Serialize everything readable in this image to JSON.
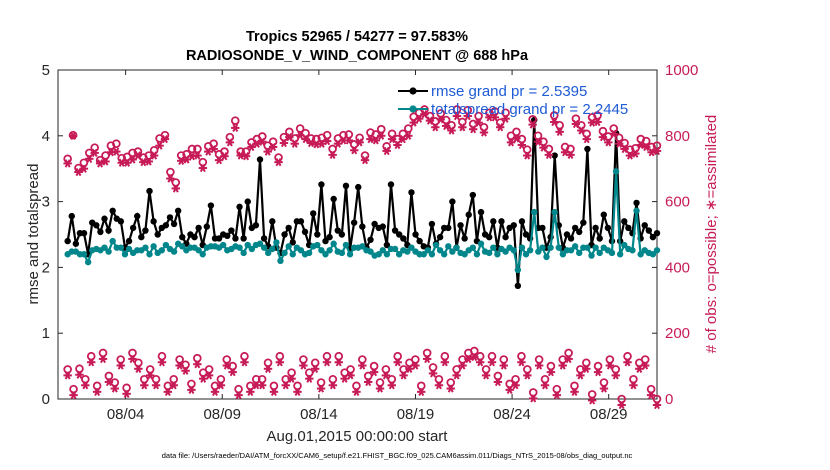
{
  "chart_data": {
    "type": "line",
    "title_line1": "Tropics 52965 / 54277 = 97.583%",
    "title_line2": "RADIOSONDE_V_WIND_COMPONENT @ 688 hPa",
    "ylabel_left": "rmse and totalspread",
    "ylabel_right": "# of obs: o=possible; ∗=assimilated",
    "xlabel": "Aug.01,2015 00:00:00 start",
    "footnote": "data file: /Users/raeder/DAI/ATM_forcXX/CAM6_setup/f.e21.FHIST_BGC.f09_025.CAM6assim.011/Diags_NTrS_2015-08/obs_diag_output.nc",
    "xlim": [
      0.5,
      31.5
    ],
    "ylim_left": [
      0,
      5
    ],
    "ylim_right": [
      0,
      1000
    ],
    "yticks_left": [
      "0",
      "1",
      "2",
      "3",
      "4",
      "5"
    ],
    "yticks_right": [
      "0",
      "200",
      "400",
      "600",
      "800",
      "1000"
    ],
    "xticks": [
      {
        "day": 4,
        "label": "08/04"
      },
      {
        "day": 9,
        "label": "08/09"
      },
      {
        "day": 14,
        "label": "08/14"
      },
      {
        "day": 19,
        "label": "08/19"
      },
      {
        "day": 24,
        "label": "08/24"
      },
      {
        "day": 29,
        "label": "08/29"
      }
    ],
    "legend": [
      {
        "label": "rmse grand pr = 2.5395",
        "color": "#000000"
      },
      {
        "label": "totalspread grand pr = 2.2445",
        "color": "#00868b"
      }
    ],
    "colors": {
      "rmse": "#000000",
      "spread": "#00868b",
      "obs": "#c71b58",
      "legend_text": "#1f5bd6"
    },
    "series": [
      {
        "name": "rmse",
        "values": [
          2.4,
          2.78,
          2.36,
          2.52,
          2.52,
          2.2,
          2.68,
          2.64,
          2.54,
          2.74,
          2.56,
          2.86,
          2.74,
          2.7,
          2.3,
          2.4,
          2.6,
          2.78,
          2.46,
          2.56,
          3.16,
          2.7,
          2.5,
          2.6,
          2.64,
          2.76,
          2.66,
          2.86,
          2.46,
          2.36,
          2.5,
          2.46,
          2.6,
          2.34,
          2.62,
          2.94,
          2.44,
          2.44,
          2.5,
          2.48,
          2.56,
          2.44,
          2.92,
          2.44,
          3.0,
          2.6,
          2.64,
          3.64,
          2.44,
          2.32,
          2.7,
          2.3,
          2.22,
          2.5,
          2.6,
          2.38,
          2.7,
          2.7,
          2.54,
          2.34,
          2.82,
          2.5,
          3.26,
          2.4,
          2.46,
          3.04,
          2.56,
          2.5,
          3.24,
          2.28,
          2.68,
          3.22,
          2.62,
          2.3,
          2.42,
          2.66,
          2.6,
          2.62,
          2.34,
          3.26,
          2.56,
          2.5,
          2.44,
          2.34,
          3.14,
          2.5,
          2.4,
          2.32,
          2.3,
          2.66,
          2.36,
          2.46,
          2.6,
          2.6,
          3.0,
          2.3,
          2.64,
          2.44,
          2.8,
          3.1,
          2.4,
          2.84,
          2.5,
          2.46,
          2.7,
          2.3,
          2.7,
          2.46,
          2.6,
          2.64,
          1.72,
          2.7,
          2.5,
          2.44,
          4.24,
          2.6,
          2.6,
          2.3,
          2.46,
          3.7,
          2.64,
          2.3,
          2.5,
          2.44,
          2.6,
          2.54,
          2.68,
          3.8,
          2.34,
          2.6,
          2.44,
          2.8,
          2.6,
          2.4,
          4.04,
          2.4,
          2.7,
          2.6,
          2.52,
          2.98,
          2.44,
          2.64,
          2.56,
          2.46,
          2.52
        ]
      },
      {
        "name": "totalspread",
        "values": [
          2.2,
          2.24,
          2.24,
          2.2,
          2.2,
          2.08,
          2.26,
          2.28,
          2.26,
          2.3,
          2.24,
          2.4,
          2.3,
          2.3,
          2.2,
          2.28,
          2.22,
          2.26,
          2.26,
          2.3,
          2.2,
          2.32,
          2.22,
          2.26,
          2.34,
          2.28,
          2.24,
          2.36,
          2.32,
          2.26,
          2.3,
          2.3,
          2.26,
          2.2,
          2.3,
          2.32,
          2.32,
          2.3,
          2.34,
          2.26,
          2.28,
          2.32,
          2.3,
          2.22,
          2.34,
          2.28,
          2.34,
          2.36,
          2.3,
          2.22,
          2.28,
          2.38,
          2.1,
          2.22,
          2.32,
          2.2,
          2.3,
          2.26,
          2.2,
          2.22,
          2.32,
          2.34,
          2.26,
          2.2,
          2.26,
          2.36,
          2.24,
          2.22,
          2.34,
          2.2,
          2.3,
          2.3,
          2.32,
          2.26,
          2.24,
          2.18,
          2.2,
          2.26,
          2.2,
          2.28,
          2.28,
          2.2,
          2.26,
          2.24,
          2.3,
          2.24,
          2.2,
          2.2,
          2.26,
          2.2,
          2.34,
          2.26,
          2.2,
          2.32,
          2.24,
          2.3,
          2.22,
          2.2,
          2.26,
          2.3,
          2.2,
          2.36,
          2.24,
          2.22,
          2.3,
          2.2,
          2.28,
          2.24,
          2.3,
          2.26,
          1.96,
          2.3,
          2.2,
          2.26,
          2.84,
          2.24,
          2.3,
          2.16,
          2.3,
          2.84,
          2.3,
          2.2,
          2.26,
          2.26,
          2.32,
          2.22,
          2.3,
          2.3,
          2.18,
          2.3,
          2.22,
          2.3,
          2.26,
          2.22,
          3.46,
          2.2,
          2.34,
          2.28,
          2.26,
          2.86,
          2.2,
          2.26,
          2.22,
          2.2,
          2.26
        ]
      },
      {
        "name": "obs_possible",
        "values": [
          730,
          802,
          702,
          718,
          748,
          764,
          726,
          740,
          770,
          776,
          732,
          736,
          748,
          752,
          734,
          740,
          756,
          792,
          802,
          690,
          658,
          740,
          744,
          760,
          760,
          720,
          768,
          776,
          744,
          752,
          796,
          846,
          752,
          752,
          780,
          790,
          798,
          770,
          782,
          734,
          796,
          812,
          792,
          822,
          808,
          792,
          790,
          794,
          802,
          760,
          792,
          802,
          804,
          774,
          794,
          740,
          810,
          804,
          820,
          768,
          806,
          790,
          806,
          822,
          858,
          870,
          880,
          860,
          844,
          868,
          848,
          832,
          880,
          842,
          878,
          836,
          860,
          826,
          870,
          874,
          840,
          870,
          800,
          812,
          790,
          758,
          850,
          800,
          782,
          760,
          862,
          832,
          766,
          760,
          852,
          832,
          806,
          856,
          862,
          814,
          798,
          822,
          794,
          778,
          758,
          762,
          790,
          784,
          766,
          770
        ],
        "_note": "top band, possible counts"
      },
      {
        "name": "obs_assimilated",
        "values": [
          716,
          800,
          690,
          700,
          730,
          748,
          716,
          722,
          750,
          752,
          718,
          718,
          728,
          740,
          720,
          722,
          740,
          770,
          790,
          670,
          640,
          724,
          728,
          738,
          740,
          702,
          752,
          760,
          726,
          738,
          780,
          824,
          740,
          738,
          766,
          776,
          782,
          752,
          766,
          720,
          778,
          796,
          776,
          802,
          790,
          778,
          774,
          776,
          784,
          742,
          776,
          786,
          786,
          756,
          780,
          726,
          790,
          786,
          800,
          754,
          790,
          772,
          790,
          800,
          840,
          852,
          866,
          846,
          826,
          850,
          830,
          816,
          860,
          826,
          860,
          820,
          840,
          810,
          856,
          856,
          826,
          852,
          780,
          792,
          772,
          740,
          834,
          782,
          764,
          742,
          842,
          812,
          750,
          742,
          836,
          816,
          790,
          840,
          842,
          796,
          780,
          806,
          776,
          760,
          740,
          746,
          772,
          766,
          750,
          754
        ]
      },
      {
        "name": "obs_low_possible",
        "values": [
          90,
          30,
          92,
          60,
          130,
          40,
          140,
          70,
          50,
          120,
          34,
          140,
          110,
          60,
          90,
          60,
          130,
          40,
          60,
          120,
          104,
          46,
          124,
          80,
          90,
          40,
          60,
          120,
          100,
          30,
          130,
          40,
          60,
          60,
          110,
          40,
          130,
          60,
          80,
          40,
          120,
          80,
          110,
          50,
          130,
          60,
          130,
          80,
          90,
          40,
          120,
          70,
          100,
          50,
          90,
          60,
          130,
          90,
          110,
          120,
          40,
          140,
          96,
          60,
          130,
          50,
          90,
          120,
          140,
          146,
          130,
          90,
          130,
          70,
          120,
          46,
          60,
          130,
          90,
          20,
          120,
          60,
          100,
          30,
          120,
          140,
          40,
          90,
          110,
          14,
          100,
          50,
          120,
          90,
          0,
          130,
          60,
          110,
          120,
          30,
          0
        ],
        "_note": "low band samples"
      }
    ]
  }
}
